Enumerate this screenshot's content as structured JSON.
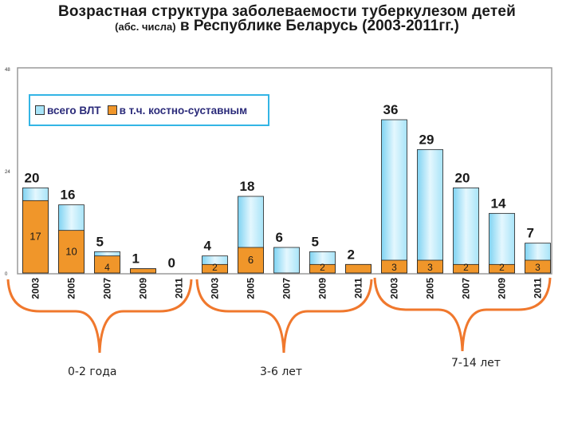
{
  "title_line1": "Возрастная структура заболеваемости туберкулезом детей",
  "title_line2_small": "(абс. числа)",
  "title_line2_rest": " в Республике Беларусь (2003-2011гг.)",
  "colors": {
    "total_bar": "#a8e4f8",
    "osteo_bar": "#f0962a",
    "brace": "#f0782d",
    "legend_border": "#33b5e5"
  },
  "groups": [
    {
      "label": "0-2 года"
    },
    {
      "label": "3-6 лет"
    },
    {
      "label": "7-14 лет"
    }
  ],
  "chart_data": {
    "type": "bar",
    "ylim": [
      0,
      48
    ],
    "y_ticks": [
      "0",
      "24",
      "48"
    ],
    "categories": [
      "2003",
      "2005",
      "2007",
      "2009",
      "2011",
      "2003",
      "2005",
      "2007",
      "2009",
      "2011",
      "2003",
      "2005",
      "2007",
      "2009",
      "2011"
    ],
    "series": [
      {
        "name": "всего ВЛТ",
        "values": [
          20,
          16,
          5,
          1,
          0,
          4,
          18,
          6,
          5,
          2,
          36,
          29,
          20,
          14,
          7
        ],
        "labels": [
          "20",
          "16",
          "5",
          "1",
          "0",
          "4",
          "18",
          "6",
          "5",
          "2",
          "36",
          "29",
          "20",
          "14",
          "7"
        ]
      },
      {
        "name": "в т.ч. костно-суставным",
        "values": [
          17,
          10,
          4,
          1,
          0,
          2,
          6,
          0,
          2,
          2,
          3,
          3,
          2,
          2,
          3
        ],
        "labels": [
          "17",
          "10",
          "4",
          "",
          "",
          "2",
          "6",
          "",
          "2",
          "",
          "3",
          "3",
          "2",
          "2",
          "3"
        ]
      }
    ]
  }
}
